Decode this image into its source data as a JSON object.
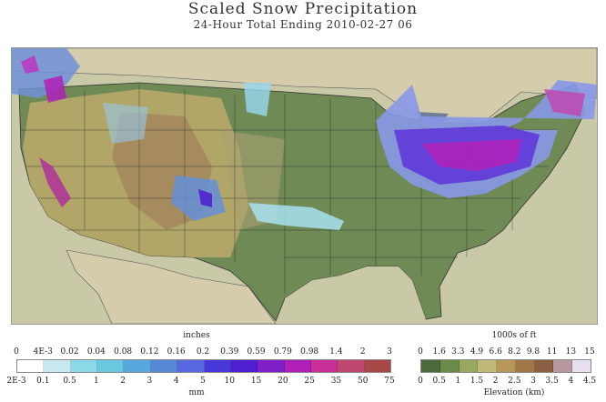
{
  "header": {
    "title": "Scaled Snow Precipitation",
    "subtitle": "24-Hour Total Ending 2010-02-27 06"
  },
  "map": {
    "region": "Contiguous United States",
    "land_color": "#7a8f5a",
    "water_color": "#c9c9a8",
    "ocean_color": "#6f7f99"
  },
  "precip_legend": {
    "top_unit": "inches",
    "bottom_unit": "mm",
    "top_ticks": [
      "0",
      "4E-3",
      "0.02",
      "0.04",
      "0.08",
      "0.12",
      "0.16",
      "0.2",
      "0.39",
      "0.59",
      "0.79",
      "0.98",
      "1.4",
      "2",
      "3"
    ],
    "bottom_ticks": [
      "2E-3",
      "0.1",
      "0.5",
      "1",
      "2",
      "3",
      "4",
      "5",
      "10",
      "15",
      "20",
      "25",
      "35",
      "50",
      "75"
    ],
    "colors": [
      "#ffffff",
      "#c8e8f0",
      "#8ad8e8",
      "#68c8e0",
      "#58a8e0",
      "#5888d8",
      "#5868e0",
      "#4838d8",
      "#5020d0",
      "#8020c8",
      "#b020b8",
      "#c83098",
      "#c04870",
      "#a84848"
    ]
  },
  "elev_legend": {
    "top_unit": "1000s of ft",
    "bottom_unit": "Elevation (km)",
    "top_ticks": [
      "0",
      "1.6",
      "3.3",
      "4.9",
      "6.6",
      "8.2",
      "9.8",
      "11",
      "13",
      "15"
    ],
    "bottom_ticks": [
      "0",
      "0.5",
      "1",
      "1.5",
      "2",
      "2.5",
      "3",
      "3.5",
      "4",
      "4.5"
    ],
    "colors": [
      "#4a6a3a",
      "#6a8a4a",
      "#98a860",
      "#c0b878",
      "#b89858",
      "#a07848",
      "#8a6040",
      "#b898a0",
      "#e8e0f0"
    ]
  }
}
